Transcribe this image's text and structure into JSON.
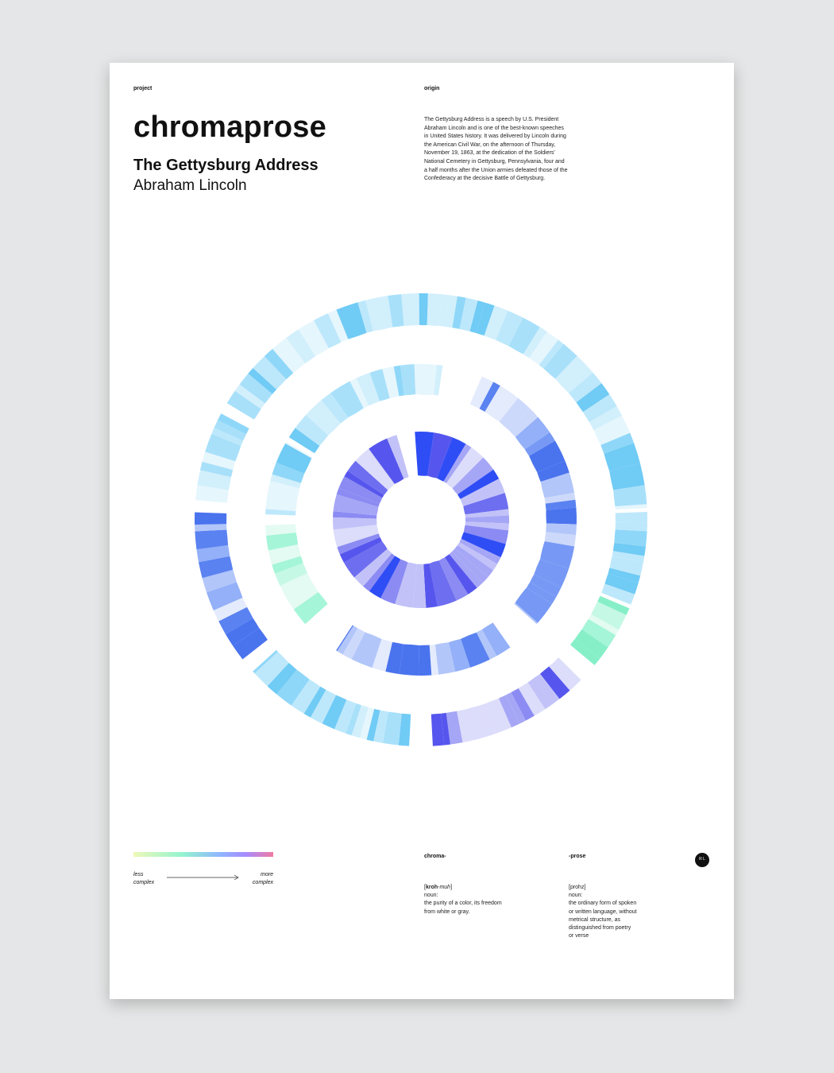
{
  "header": {
    "project_label": "project",
    "origin_label": "origin",
    "title": "chromaprose",
    "work_title": "The Gettysburg Address",
    "author": "Abraham Lincoln",
    "origin_text": "The Gettysburg Address is a speech by U.S. President Abraham Lincoln and is one of the best-known speeches in United States history. It was delivered by Lincoln during the American Civil War, on the afternoon of Thursday, November 19, 1863, at the dedication of the Soldiers' National Cemetery in Gettysburg, Pennsylvania, four and a half months after the Union armies defeated those of the Confederacy at the decisive Battle of Gettysburg."
  },
  "legend": {
    "less": "less complex",
    "more": "more complex",
    "gradient_colors": [
      "#eef9b8",
      "#93f3cf",
      "#8fb6ff",
      "#a58cff",
      "#f07aa4"
    ]
  },
  "definitions": {
    "chroma": {
      "head": "chroma-",
      "pron_stress": "kroh",
      "pron_rest": "-muh",
      "pos": "noun:",
      "text": "the purity of a color, its freedom from white or gray."
    },
    "prose": {
      "head": "-prose",
      "pron": "[prohz]",
      "pos": "noun:",
      "text": "the ordinary form of spoken or written language, without metrical structure, as distinguished from poetry or verse"
    }
  },
  "logo": {
    "letters": "R L",
    "color": "#111111"
  },
  "visual": {
    "palette": {
      "sky": [
        "#e6f6fd",
        "#d2effc",
        "#bde8fb",
        "#a8e0fa",
        "#8fd7f8",
        "#70cbf5"
      ],
      "blue": [
        "#e4ebfd",
        "#cdd9fb",
        "#b2c6fa",
        "#93b0f8",
        "#7799f5",
        "#5a82f1",
        "#4a73ee"
      ],
      "violet": [
        "#dcdcfb",
        "#c2c2f9",
        "#a6a6f6",
        "#8b8bf3",
        "#6e6ef1",
        "#5656ee",
        "#2f4df5"
      ],
      "mint": [
        "#e3fbf2",
        "#c6f8e6",
        "#a5f5d8",
        "#86efc8"
      ]
    }
  }
}
